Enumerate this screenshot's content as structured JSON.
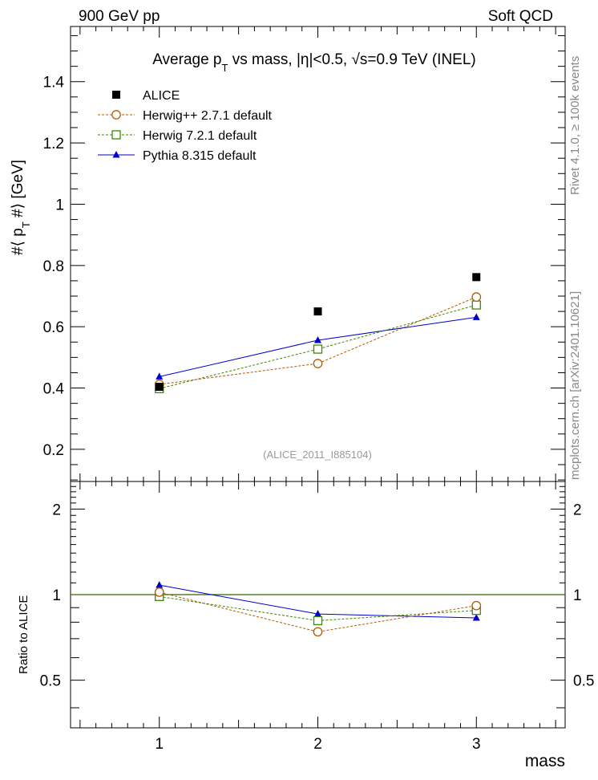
{
  "header": {
    "left": "900 GeV pp",
    "right": "Soft QCD",
    "side_top": "Rivet 4.1.0, ≥ 100k events",
    "side_bottom": "mcplots.cern.ch [arXiv:2401.10621]"
  },
  "chart_data": [
    {
      "type": "scatter",
      "panel": "main",
      "title": "Average p_T vs mass, |η|<0.5, √s=0.9 TeV (INEL)",
      "ylabel": "#⟨ p_T #⟩ [GeV]",
      "xlabel": "mass",
      "xlim": [
        0.44,
        3.56
      ],
      "ylim": [
        0.095,
        1.58
      ],
      "yticks": [
        0.2,
        0.4,
        0.6,
        0.8,
        1,
        1.2,
        1.4
      ],
      "ytick_labels": [
        "0.2",
        "0.4",
        "0.6",
        "0.8",
        "1",
        "1.2",
        "1.4"
      ],
      "watermark": "(ALICE_2011_I885104)",
      "legend_position": "top-left",
      "x": [
        1,
        2,
        3
      ],
      "series": [
        {
          "name": "ALICE",
          "values": [
            0.404,
            0.65,
            0.762
          ],
          "color": "#000000",
          "marker": "square-filled",
          "line": "none"
        },
        {
          "name": "Herwig++ 2.7.1 default",
          "values": [
            0.412,
            0.48,
            0.697
          ],
          "color": "#b35900",
          "marker": "circle-open",
          "line": "dashed"
        },
        {
          "name": "Herwig 7.2.1 default",
          "values": [
            0.398,
            0.527,
            0.671
          ],
          "color": "#3a8a00",
          "marker": "square-open",
          "line": "dashed"
        },
        {
          "name": "Pythia 8.315 default",
          "values": [
            0.437,
            0.556,
            0.631
          ],
          "color": "#0000cc",
          "marker": "triangle-filled",
          "line": "solid"
        }
      ]
    },
    {
      "type": "scatter",
      "panel": "ratio",
      "ylabel": "Ratio to ALICE",
      "xlabel": "mass",
      "xlim": [
        0.44,
        3.56
      ],
      "ylim": [
        0.34,
        2.5
      ],
      "yscale": "log",
      "yticks": [
        0.5,
        1,
        2
      ],
      "ytick_labels": [
        "0.5",
        "1",
        "2"
      ],
      "xticks": [
        1,
        2,
        3
      ],
      "xtick_labels": [
        "1",
        "2",
        "3"
      ],
      "x": [
        1,
        2,
        3
      ],
      "reference_line": {
        "value": 1,
        "color": "#336600"
      },
      "series": [
        {
          "name": "Herwig++ 2.7.1 default",
          "values": [
            1.02,
            0.74,
            0.915
          ],
          "color": "#b35900",
          "marker": "circle-open",
          "line": "dashed"
        },
        {
          "name": "Herwig 7.2.1 default",
          "values": [
            0.985,
            0.81,
            0.88
          ],
          "color": "#3a8a00",
          "marker": "square-open",
          "line": "dashed"
        },
        {
          "name": "Pythia 8.315 default",
          "values": [
            1.08,
            0.855,
            0.828
          ],
          "color": "#0000cc",
          "marker": "triangle-filled",
          "line": "solid"
        }
      ]
    }
  ]
}
